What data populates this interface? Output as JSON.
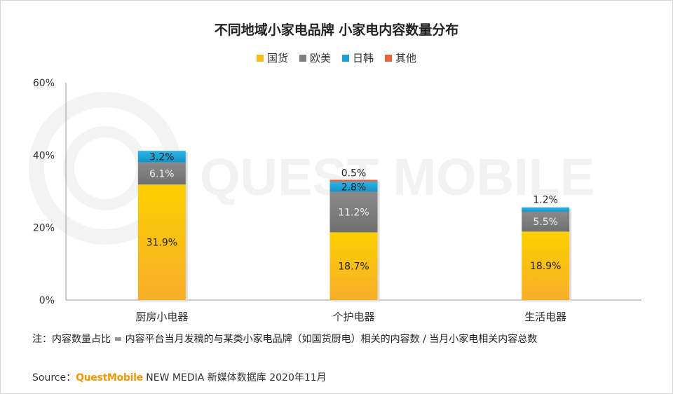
{
  "chart_data": {
    "type": "bar",
    "stacked": true,
    "title": "不同地域小家电品牌 小家电内容数量分布",
    "categories": [
      "厨房小电器",
      "个护电器",
      "生活电器"
    ],
    "series": [
      {
        "name": "国货",
        "color": "#f7b820",
        "values": [
          31.9,
          18.7,
          18.9
        ]
      },
      {
        "name": "欧美",
        "color": "#7f7f7f",
        "values": [
          6.1,
          11.2,
          5.5
        ]
      },
      {
        "name": "日韩",
        "color": "#1aa1d6",
        "values": [
          3.2,
          2.8,
          1.2
        ]
      },
      {
        "name": "其他",
        "color": "#e8643c",
        "values": [
          null,
          0.5,
          null
        ]
      }
    ],
    "labels": [
      [
        "31.9%",
        "18.7%",
        "18.9%"
      ],
      [
        "6.1%",
        "11.2%",
        "5.5%"
      ],
      [
        "3.2%",
        "2.8%",
        "1.2%"
      ],
      [
        "",
        "0.5%",
        ""
      ]
    ],
    "yticks": [
      0,
      20,
      40,
      60
    ],
    "ytick_labels": [
      "0%",
      "20%",
      "40%",
      "60%"
    ],
    "ylim": [
      0,
      60
    ],
    "legend_position": "top",
    "grid": false
  },
  "note": "注：内容数量占比 = 内容平台当月发稿的与某类小家电品牌（如国货厨电）相关的内容数 / 当月小家电相关内容总数",
  "source": {
    "prefix": "Source：",
    "brand": "QuestMobile",
    "suffix": " NEW MEDIA 新媒体数据库 2020年11月"
  },
  "watermark": "QUEST MOBILE"
}
